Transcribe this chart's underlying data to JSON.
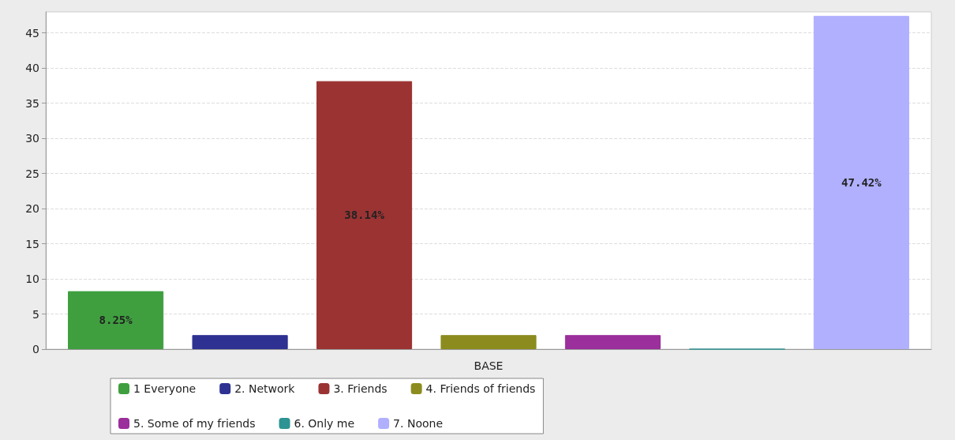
{
  "chart_data": {
    "type": "bar",
    "xlabel": "BASE",
    "categories": [
      null
    ],
    "series": [
      {
        "name": "1 Everyone",
        "color": "#3f9f3f",
        "values": [
          8.25
        ],
        "value_labels": [
          "8.25%"
        ]
      },
      {
        "name": "2. Network",
        "color": "#2e3192",
        "values": [
          2
        ],
        "value_labels": [
          null
        ]
      },
      {
        "name": "3. Friends",
        "color": "#9b3333",
        "values": [
          38.14
        ],
        "value_labels": [
          "38.14%"
        ]
      },
      {
        "name": "4. Friends of friends",
        "color": "#8c8c1e",
        "values": [
          2
        ],
        "value_labels": [
          null
        ]
      },
      {
        "name": "5. Some of my friends",
        "color": "#9b2f9b",
        "values": [
          2
        ],
        "value_labels": [
          null
        ]
      },
      {
        "name": "6. Only me",
        "color": "#2e9393",
        "values": [
          0
        ],
        "value_labels": [
          null
        ]
      },
      {
        "name": "7. Noone",
        "color": "#b0b0ff",
        "values": [
          47.42
        ],
        "value_labels": [
          "47.42%"
        ]
      }
    ],
    "ylim": [
      0,
      48
    ],
    "yticks": [
      0,
      5,
      10,
      15,
      20,
      25,
      30,
      35,
      40,
      45
    ],
    "grid": "y",
    "legend": "bottom"
  }
}
